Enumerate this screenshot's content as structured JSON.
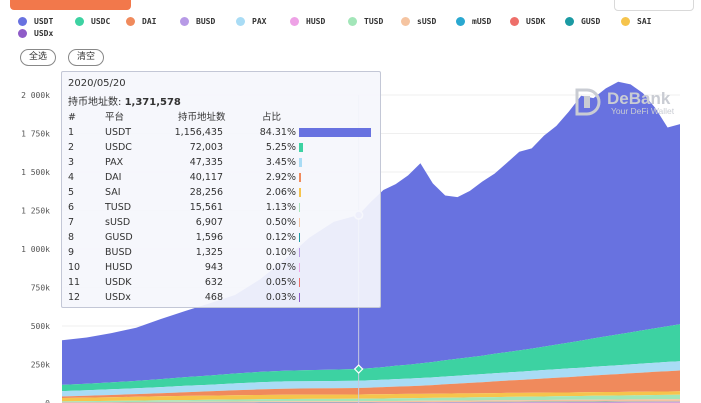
{
  "legend": [
    {
      "name": "USDT",
      "color": "#6872e0"
    },
    {
      "name": "USDC",
      "color": "#3dd2a2"
    },
    {
      "name": "DAI",
      "color": "#f08a5c"
    },
    {
      "name": "BUSD",
      "color": "#b79ae6"
    },
    {
      "name": "PAX",
      "color": "#a9dcf5"
    },
    {
      "name": "HUSD",
      "color": "#eea2e6"
    },
    {
      "name": "TUSD",
      "color": "#a3e6b9"
    },
    {
      "name": "sUSD",
      "color": "#f5c4a1"
    },
    {
      "name": "mUSD",
      "color": "#2aa8d0"
    },
    {
      "name": "USDK",
      "color": "#ee6f6a"
    },
    {
      "name": "GUSD",
      "color": "#1b9aa3"
    },
    {
      "name": "SAI",
      "color": "#f6c44c"
    },
    {
      "name": "USDx",
      "color": "#8f5cc8"
    }
  ],
  "buttons": {
    "select_all": "全选",
    "clear": "清空"
  },
  "watermark": {
    "brand": "DeBank",
    "tagline": "Your DeFi Wallet"
  },
  "tooltip": {
    "date": "2020/05/20",
    "total_label": "持币地址数:",
    "total_value": "1,371,578",
    "headers": {
      "rank": "#",
      "platform": "平台",
      "count": "持币地址数",
      "share": "占比"
    },
    "rows": [
      {
        "rank": "1",
        "name": "USDT",
        "count": "1,156,435",
        "pct": "84.31%",
        "share": 84.31
      },
      {
        "rank": "2",
        "name": "USDC",
        "count": "72,003",
        "pct": "5.25%",
        "share": 5.25
      },
      {
        "rank": "3",
        "name": "PAX",
        "count": "47,335",
        "pct": "3.45%",
        "share": 3.45
      },
      {
        "rank": "4",
        "name": "DAI",
        "count": "40,117",
        "pct": "2.92%",
        "share": 2.92
      },
      {
        "rank": "5",
        "name": "SAI",
        "count": "28,256",
        "pct": "2.06%",
        "share": 2.06
      },
      {
        "rank": "6",
        "name": "TUSD",
        "count": "15,561",
        "pct": "1.13%",
        "share": 1.13
      },
      {
        "rank": "7",
        "name": "sUSD",
        "count": "6,907",
        "pct": "0.50%",
        "share": 0.5
      },
      {
        "rank": "8",
        "name": "GUSD",
        "count": "1,596",
        "pct": "0.12%",
        "share": 0.12
      },
      {
        "rank": "9",
        "name": "BUSD",
        "count": "1,325",
        "pct": "0.10%",
        "share": 0.1
      },
      {
        "rank": "10",
        "name": "HUSD",
        "count": "943",
        "pct": "0.07%",
        "share": 0.07
      },
      {
        "rank": "11",
        "name": "USDK",
        "count": "632",
        "pct": "0.05%",
        "share": 0.05
      },
      {
        "rank": "12",
        "name": "USDx",
        "count": "468",
        "pct": "0.03%",
        "share": 0.03
      }
    ]
  },
  "chart_data": {
    "type": "area",
    "stacked": true,
    "grid": true,
    "ylim": [
      0,
      2000000
    ],
    "yticks": [
      "0",
      "250k",
      "500k",
      "750k",
      "1 000k",
      "1 250k",
      "1 500k",
      "1 750k",
      "2 000k"
    ],
    "x": [
      0,
      4,
      8,
      12,
      16,
      20,
      24,
      28,
      32,
      36,
      40,
      44,
      48,
      50,
      52,
      54,
      56,
      58,
      60,
      62,
      64,
      66,
      68,
      70,
      72,
      74,
      76,
      78,
      80,
      82,
      84,
      86,
      88,
      90,
      92,
      94,
      96,
      98,
      100
    ],
    "series": [
      {
        "name": "USDT",
        "values": [
          290000,
          300000,
          320000,
          345000,
          390000,
          430000,
          470000,
          510000,
          600000,
          720000,
          860000,
          960000,
          1000000,
          1080000,
          1150000,
          1180000,
          1230000,
          1300000,
          1160000,
          1070000,
          1050000,
          1080000,
          1130000,
          1170000,
          1230000,
          1290000,
          1300000,
          1370000,
          1420000,
          1500000,
          1590000,
          1560000,
          1610000,
          1640000,
          1610000,
          1540000,
          1430000,
          1290000,
          1300000
        ]
      },
      {
        "name": "USDC",
        "values": [
          40000,
          42000,
          45000,
          48000,
          52000,
          56000,
          60000,
          64000,
          68000,
          70000,
          72000,
          74000,
          76000,
          78000,
          82000,
          86000,
          90000,
          95000,
          100000,
          105000,
          110000,
          115000,
          120000,
          126000,
          132000,
          138000,
          145000,
          152000,
          160000,
          168000,
          176000,
          184000,
          192000,
          200000,
          208000,
          216000,
          224000,
          232000,
          240000
        ]
      },
      {
        "name": "PAX",
        "values": [
          35000,
          36000,
          37000,
          38000,
          40000,
          42000,
          43000,
          45000,
          46000,
          47000,
          47000,
          47000,
          47000,
          48000,
          48000,
          49000,
          49000,
          50000,
          50000,
          51000,
          51000,
          52000,
          52000,
          53000,
          53000,
          54000,
          54000,
          55000,
          55000,
          56000,
          56000,
          57000,
          57000,
          58000,
          58000,
          59000,
          59000,
          60000,
          60000
        ]
      },
      {
        "name": "DAI",
        "values": [
          10000,
          12000,
          14000,
          17000,
          20000,
          24000,
          28000,
          32000,
          36000,
          39000,
          40000,
          41000,
          42000,
          44000,
          46000,
          48000,
          50000,
          53000,
          56000,
          60000,
          64000,
          68000,
          72000,
          76000,
          80000,
          84000,
          88000,
          92000,
          96000,
          100000,
          104000,
          108000,
          112000,
          116000,
          120000,
          124000,
          128000,
          132000,
          135000
        ]
      },
      {
        "name": "SAI",
        "values": [
          22000,
          23000,
          24000,
          25000,
          26000,
          27000,
          27000,
          28000,
          28000,
          28000,
          28000,
          28000,
          28000,
          28000,
          28000,
          28000,
          28000,
          27000,
          27000,
          27000,
          27000,
          26000,
          26000,
          26000,
          26000,
          25000,
          25000,
          25000,
          25000,
          24000,
          24000,
          24000,
          24000,
          23000,
          23000,
          23000,
          23000,
          22000,
          22000
        ]
      },
      {
        "name": "TUSD",
        "values": [
          6000,
          7000,
          8000,
          9000,
          10000,
          11000,
          12000,
          13000,
          14000,
          15000,
          15000,
          15000,
          15500,
          16000,
          16500,
          17000,
          17500,
          18000,
          18500,
          19000,
          19500,
          20000,
          20500,
          21000,
          21500,
          22000,
          22500,
          23000,
          23500,
          24000,
          24500,
          25000,
          25500,
          26000,
          26500,
          27000,
          27500,
          28000,
          28500
        ]
      },
      {
        "name": "sUSD",
        "values": [
          2000,
          2500,
          3000,
          3500,
          4000,
          4500,
          5000,
          5500,
          6000,
          6500,
          6800,
          6900,
          7000,
          7200,
          7500,
          7800,
          8000,
          8300,
          8600,
          9000,
          9300,
          9600,
          10000,
          10300,
          10600,
          11000,
          11300,
          11600,
          12000,
          12300,
          12600,
          13000,
          13300,
          13600,
          14000,
          14300,
          14600,
          15000,
          15300
        ]
      },
      {
        "name": "GUSD",
        "values": [
          1200,
          1250,
          1300,
          1350,
          1400,
          1450,
          1500,
          1500,
          1550,
          1550,
          1600,
          1600,
          1600,
          1600,
          1620,
          1640,
          1660,
          1680,
          1700,
          1720,
          1740,
          1760,
          1780,
          1800,
          1820,
          1840,
          1860,
          1880,
          1900,
          1920,
          1940,
          1960,
          1980,
          2000,
          2020,
          2040,
          2060,
          2080,
          2100
        ]
      },
      {
        "name": "BUSD",
        "values": [
          400,
          500,
          600,
          700,
          800,
          900,
          1000,
          1100,
          1200,
          1250,
          1300,
          1320,
          1325,
          1400,
          1500,
          1600,
          1700,
          1800,
          1900,
          2000,
          2100,
          2200,
          2300,
          2400,
          2500,
          2600,
          2700,
          2800,
          2900,
          3000,
          3100,
          3200,
          3300,
          3400,
          3500,
          3600,
          3700,
          3800,
          3900
        ]
      },
      {
        "name": "HUSD",
        "values": [
          200,
          250,
          300,
          350,
          400,
          450,
          500,
          550,
          600,
          700,
          800,
          900,
          943,
          1000,
          1050,
          1100,
          1150,
          1200,
          1250,
          1300,
          1350,
          1400,
          1450,
          1500,
          1550,
          1600,
          1650,
          1700,
          1750,
          1800,
          1850,
          1900,
          1950,
          2000,
          2050,
          2100,
          2150,
          2200,
          2250
        ]
      },
      {
        "name": "USDK",
        "values": [
          300,
          320,
          340,
          360,
          380,
          400,
          420,
          450,
          480,
          520,
          560,
          600,
          632,
          650,
          670,
          690,
          710,
          730,
          750,
          770,
          790,
          810,
          830,
          850,
          870,
          890,
          910,
          930,
          950,
          970,
          990,
          1010,
          1030,
          1050,
          1070,
          1090,
          1110,
          1130,
          1150
        ]
      },
      {
        "name": "USDx",
        "values": [
          250,
          270,
          290,
          310,
          330,
          350,
          370,
          390,
          410,
          430,
          450,
          460,
          468,
          470,
          472,
          474,
          476,
          478,
          480,
          482,
          484,
          486,
          488,
          490,
          492,
          494,
          496,
          498,
          500,
          502,
          504,
          506,
          508,
          510,
          512,
          514,
          516,
          518,
          520
        ]
      }
    ]
  }
}
